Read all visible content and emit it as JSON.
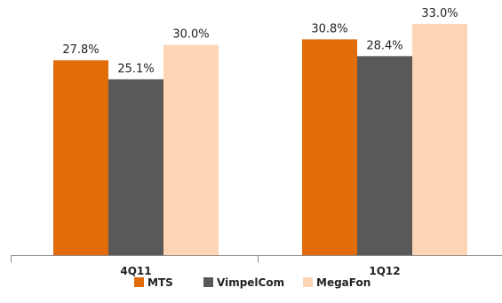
{
  "chart_data": {
    "type": "bar",
    "categories": [
      "4Q11",
      "1Q12"
    ],
    "series": [
      {
        "name": "MTS",
        "values": [
          27.8,
          30.8
        ],
        "labels": [
          "27.8%",
          "30.8%"
        ],
        "color": "#E36C0A"
      },
      {
        "name": "VimpelCom",
        "values": [
          25.1,
          28.4
        ],
        "labels": [
          "25.1%",
          "28.4%"
        ],
        "color": "#595959"
      },
      {
        "name": "MegaFon",
        "values": [
          30.0,
          33.0
        ],
        "labels": [
          "30.0%",
          "33.0%"
        ],
        "color": "#FBD5B5"
      }
    ],
    "ylim": [
      0,
      33.0
    ],
    "grid": false,
    "legend": "bottom"
  }
}
